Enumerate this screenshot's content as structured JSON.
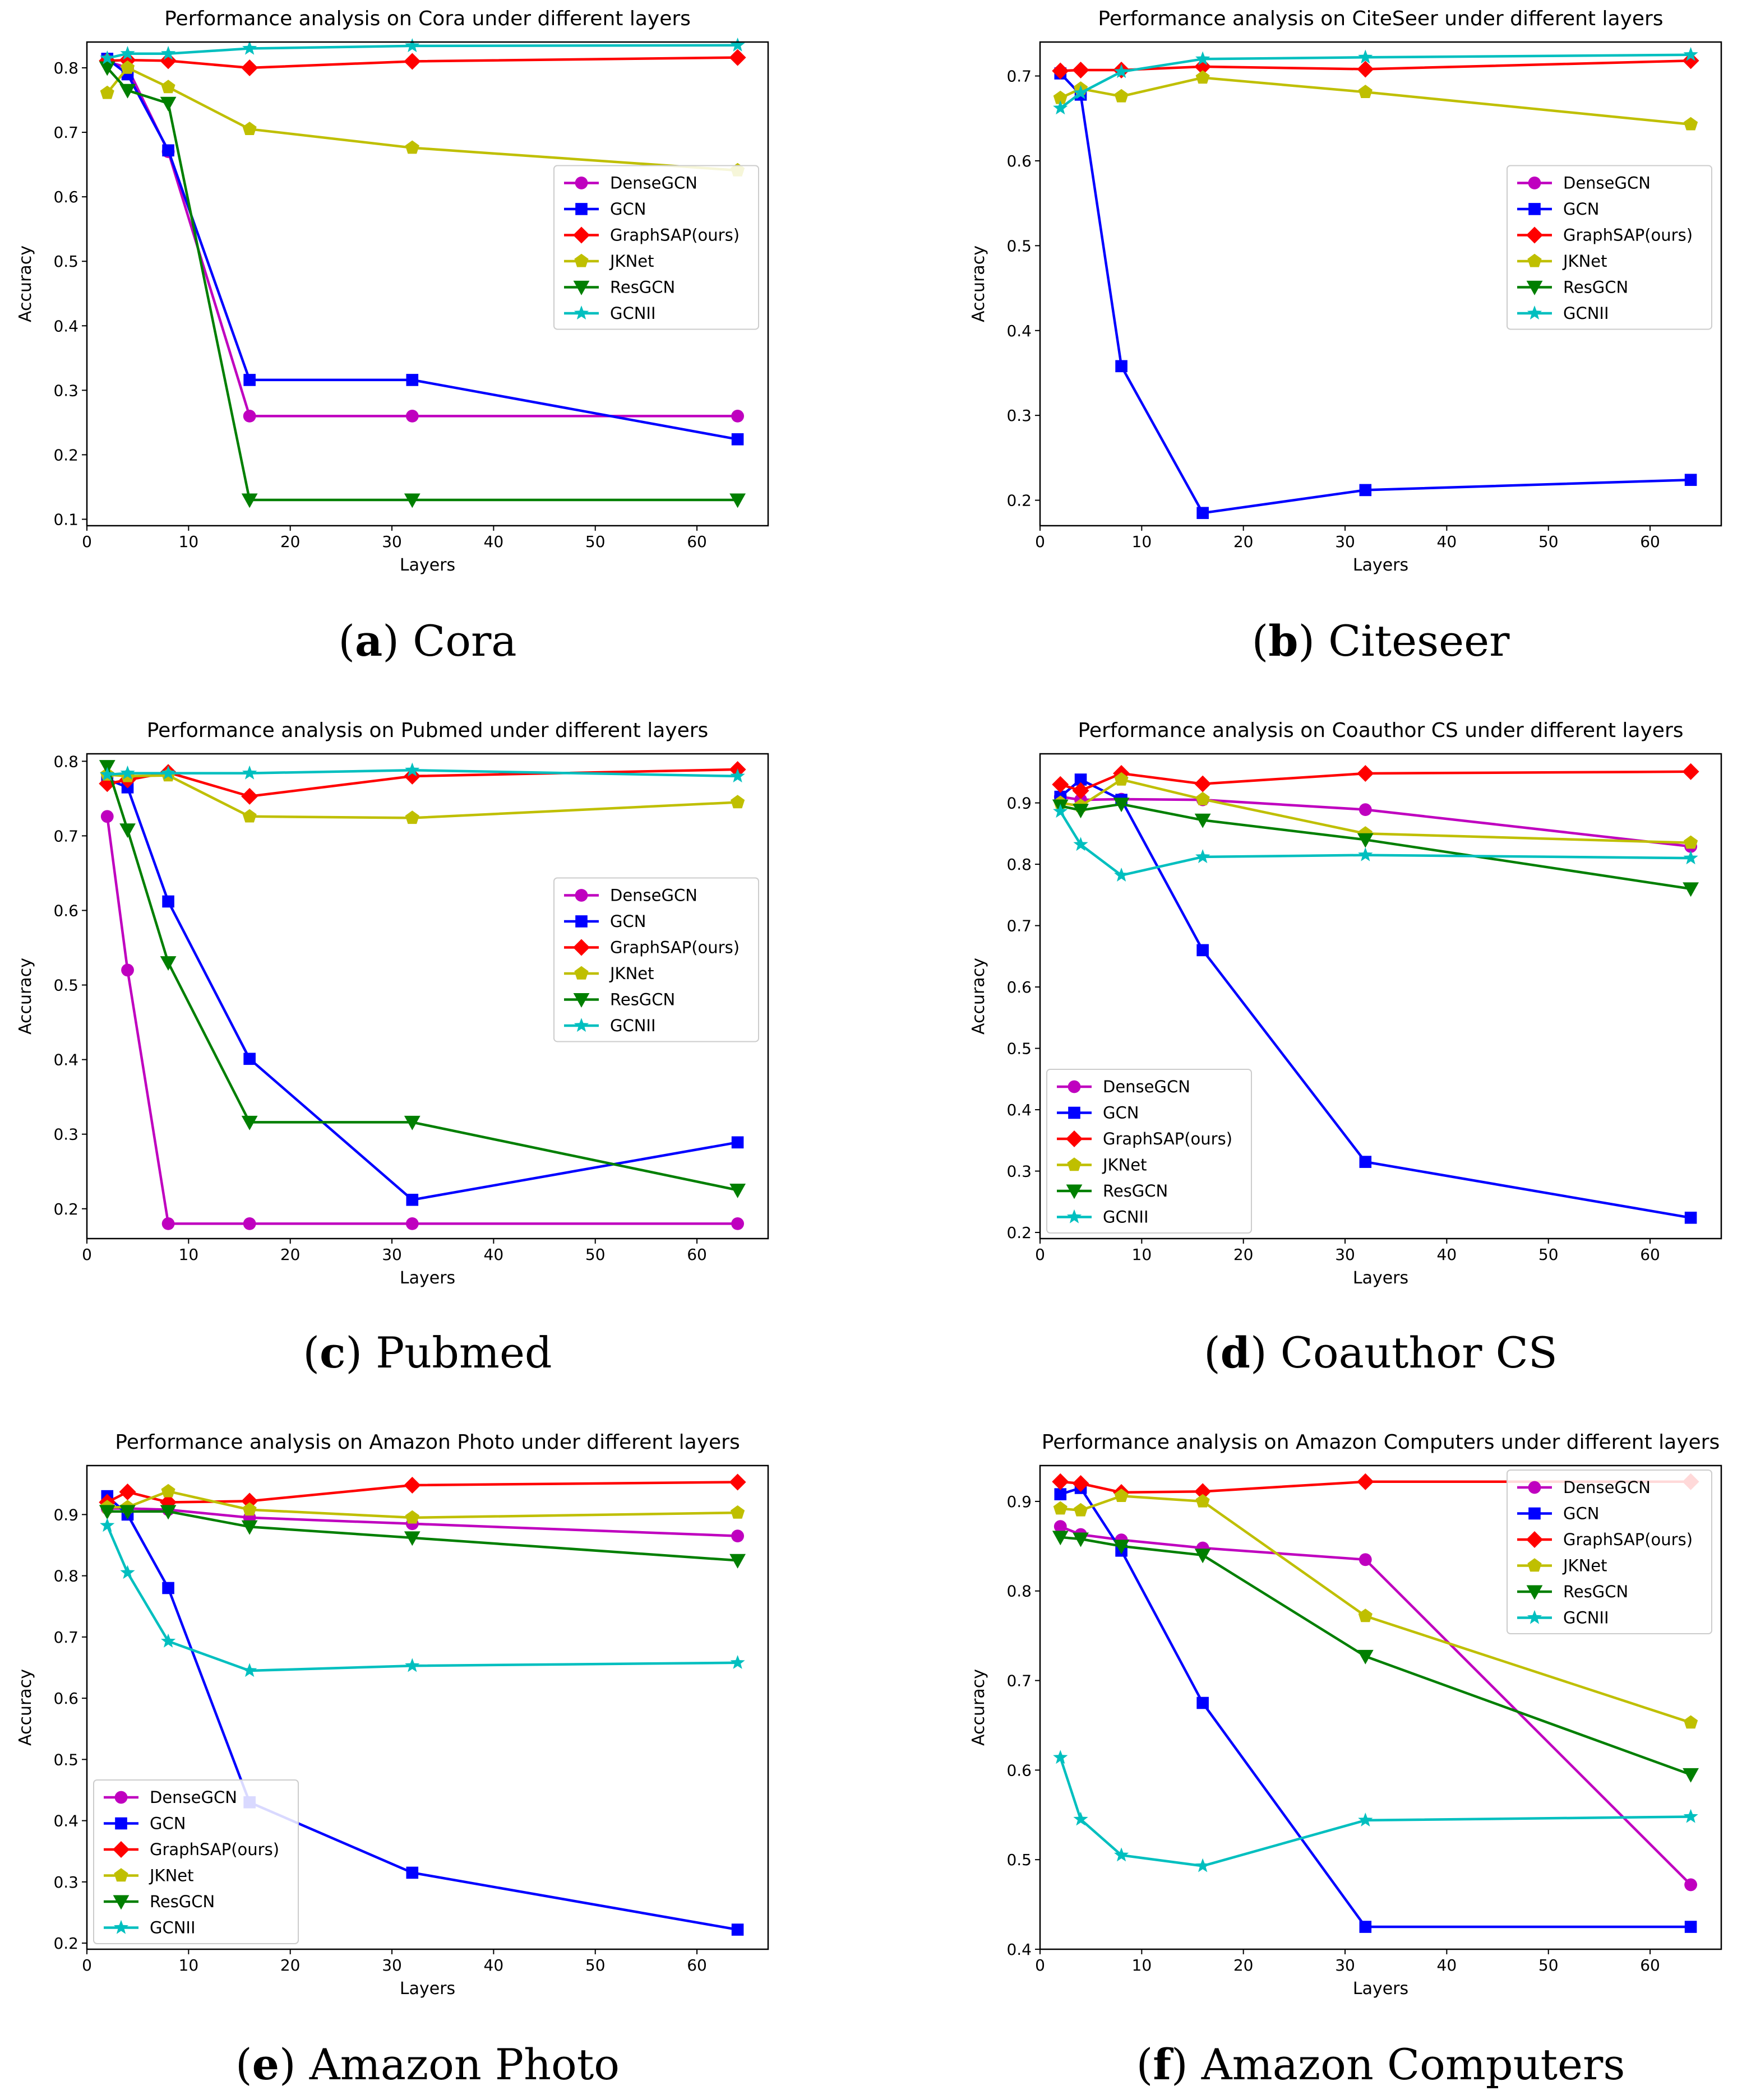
{
  "figure": {
    "series_colors": {
      "DenseGCN": "#bf00bf",
      "GCN": "#0000ff",
      "GraphSAP(ours)": "#ff0000",
      "JKNet": "#bfbf00",
      "ResGCN": "#007f00",
      "GCNII": "#00bfbf"
    }
  },
  "chart_data": [
    {
      "type": "line",
      "caption_letter": "a",
      "caption_text": "Cora",
      "title": "Performance analysis on Cora under different layers",
      "xlabel": "Layers",
      "ylabel": "Accuracy",
      "xlim": [
        0,
        67
      ],
      "ylim": [
        0.09,
        0.84
      ],
      "xticks": [
        0,
        10,
        20,
        30,
        40,
        50,
        60
      ],
      "yticks": [
        0.1,
        0.2,
        0.3,
        0.4,
        0.5,
        0.6,
        0.7,
        0.8
      ],
      "legend_position": "center-right",
      "x": [
        2,
        4,
        8,
        16,
        32,
        64
      ],
      "series": [
        {
          "name": "DenseGCN",
          "color": "#bf00bf",
          "marker": "circle",
          "values": [
            0.81,
            0.8,
            0.67,
            0.26,
            0.26,
            0.26
          ]
        },
        {
          "name": "GCN",
          "color": "#0000ff",
          "marker": "square",
          "values": [
            0.814,
            0.79,
            0.672,
            0.316,
            0.316,
            0.224
          ]
        },
        {
          "name": "GraphSAP(ours)",
          "color": "#ff0000",
          "marker": "diamond",
          "values": [
            0.811,
            0.812,
            0.811,
            0.8,
            0.81,
            0.816
          ]
        },
        {
          "name": "JKNet",
          "color": "#bfbf00",
          "marker": "pentagon",
          "values": [
            0.761,
            0.8,
            0.77,
            0.705,
            0.676,
            0.641
          ]
        },
        {
          "name": "ResGCN",
          "color": "#007f00",
          "marker": "triangle-down",
          "values": [
            0.8,
            0.765,
            0.745,
            0.13,
            0.13,
            0.13
          ]
        },
        {
          "name": "GCNII",
          "color": "#00bfbf",
          "marker": "star",
          "values": [
            0.815,
            0.822,
            0.822,
            0.83,
            0.834,
            0.835
          ]
        }
      ]
    },
    {
      "type": "line",
      "caption_letter": "b",
      "caption_text": "Citeseer",
      "title": "Performance analysis on CiteSeer under different layers",
      "xlabel": "Layers",
      "ylabel": "Accuracy",
      "xlim": [
        0,
        67
      ],
      "ylim": [
        0.17,
        0.74
      ],
      "xticks": [
        0,
        10,
        20,
        30,
        40,
        50,
        60
      ],
      "yticks": [
        0.2,
        0.3,
        0.4,
        0.5,
        0.6,
        0.7
      ],
      "legend_position": "center-right",
      "x": [
        2,
        4,
        8,
        16,
        32,
        64
      ],
      "series": [
        {
          "name": "DenseGCN",
          "color": "#bf00bf",
          "marker": "circle",
          "values": [
            null,
            null,
            null,
            null,
            null,
            null
          ]
        },
        {
          "name": "GCN",
          "color": "#0000ff",
          "marker": "square",
          "values": [
            0.703,
            0.678,
            0.358,
            0.185,
            0.212,
            0.224
          ]
        },
        {
          "name": "GraphSAP(ours)",
          "color": "#ff0000",
          "marker": "diamond",
          "values": [
            0.706,
            0.707,
            0.707,
            0.711,
            0.708,
            0.718
          ]
        },
        {
          "name": "JKNet",
          "color": "#bfbf00",
          "marker": "pentagon",
          "values": [
            0.674,
            0.685,
            0.676,
            0.698,
            0.681,
            0.643
          ]
        },
        {
          "name": "ResGCN",
          "color": "#007f00",
          "marker": "triangle-down",
          "values": [
            null,
            null,
            null,
            null,
            null,
            null
          ]
        },
        {
          "name": "GCNII",
          "color": "#00bfbf",
          "marker": "star",
          "values": [
            0.662,
            0.68,
            0.705,
            0.72,
            0.722,
            0.725
          ]
        }
      ]
    },
    {
      "type": "line",
      "caption_letter": "c",
      "caption_text": "Pubmed",
      "title": "Performance analysis on Pubmed under different layers",
      "xlabel": "Layers",
      "ylabel": "Accuracy",
      "xlim": [
        0,
        67
      ],
      "ylim": [
        0.16,
        0.81
      ],
      "xticks": [
        0,
        10,
        20,
        30,
        40,
        50,
        60
      ],
      "yticks": [
        0.2,
        0.3,
        0.4,
        0.5,
        0.6,
        0.7,
        0.8
      ],
      "legend_position": "center-right",
      "x": [
        2,
        4,
        8,
        16,
        32,
        64
      ],
      "series": [
        {
          "name": "DenseGCN",
          "color": "#bf00bf",
          "marker": "circle",
          "values": [
            0.726,
            0.52,
            0.18,
            0.18,
            0.18,
            0.18
          ]
        },
        {
          "name": "GCN",
          "color": "#0000ff",
          "marker": "square",
          "values": [
            0.776,
            0.765,
            0.612,
            0.401,
            0.212,
            0.289
          ]
        },
        {
          "name": "GraphSAP(ours)",
          "color": "#ff0000",
          "marker": "diamond",
          "values": [
            0.77,
            0.775,
            0.785,
            0.753,
            0.78,
            0.789
          ]
        },
        {
          "name": "JKNet",
          "color": "#bfbf00",
          "marker": "pentagon",
          "values": [
            0.782,
            0.78,
            0.781,
            0.726,
            0.724,
            0.745
          ]
        },
        {
          "name": "ResGCN",
          "color": "#007f00",
          "marker": "triangle-down",
          "values": [
            0.793,
            0.708,
            0.53,
            0.316,
            0.316,
            0.225
          ]
        },
        {
          "name": "GCNII",
          "color": "#00bfbf",
          "marker": "star",
          "values": [
            0.782,
            0.784,
            0.784,
            0.784,
            0.788,
            0.78
          ]
        }
      ]
    },
    {
      "type": "line",
      "caption_letter": "d",
      "caption_text": "Coauthor CS",
      "title": "Performance analysis on Coauthor CS under different layers",
      "xlabel": "Layers",
      "ylabel": "Accuracy",
      "xlim": [
        0,
        67
      ],
      "ylim": [
        0.19,
        0.98
      ],
      "xticks": [
        0,
        10,
        20,
        30,
        40,
        50,
        60
      ],
      "yticks": [
        0.2,
        0.3,
        0.4,
        0.5,
        0.6,
        0.7,
        0.8,
        0.9
      ],
      "legend_position": "lower-left",
      "x": [
        2,
        4,
        8,
        16,
        32,
        64
      ],
      "series": [
        {
          "name": "DenseGCN",
          "color": "#bf00bf",
          "marker": "circle",
          "values": [
            0.91,
            0.905,
            0.906,
            0.905,
            0.889,
            0.829
          ]
        },
        {
          "name": "GCN",
          "color": "#0000ff",
          "marker": "square",
          "values": [
            0.91,
            0.938,
            0.905,
            0.66,
            0.315,
            0.224
          ]
        },
        {
          "name": "GraphSAP(ours)",
          "color": "#ff0000",
          "marker": "diamond",
          "values": [
            0.93,
            0.92,
            0.948,
            0.931,
            0.948,
            0.951
          ]
        },
        {
          "name": "JKNet",
          "color": "#bfbf00",
          "marker": "pentagon",
          "values": [
            0.9,
            0.895,
            0.938,
            0.906,
            0.85,
            0.835
          ]
        },
        {
          "name": "ResGCN",
          "color": "#007f00",
          "marker": "triangle-down",
          "values": [
            0.895,
            0.888,
            0.898,
            0.872,
            0.84,
            0.76
          ]
        },
        {
          "name": "GCNII",
          "color": "#00bfbf",
          "marker": "star",
          "values": [
            0.886,
            0.832,
            0.782,
            0.812,
            0.815,
            0.81
          ]
        }
      ]
    },
    {
      "type": "line",
      "caption_letter": "e",
      "caption_text": "Amazon Photo",
      "title": "Performance analysis on Amazon Photo under different layers",
      "xlabel": "Layers",
      "ylabel": "Accuracy",
      "xlim": [
        0,
        67
      ],
      "ylim": [
        0.19,
        0.98
      ],
      "xticks": [
        0,
        10,
        20,
        30,
        40,
        50,
        60
      ],
      "yticks": [
        0.2,
        0.3,
        0.4,
        0.5,
        0.6,
        0.7,
        0.8,
        0.9
      ],
      "legend_position": "lower-left",
      "x": [
        2,
        4,
        8,
        16,
        32,
        64
      ],
      "series": [
        {
          "name": "DenseGCN",
          "color": "#bf00bf",
          "marker": "circle",
          "values": [
            0.91,
            0.91,
            0.908,
            0.895,
            0.885,
            0.865
          ]
        },
        {
          "name": "GCN",
          "color": "#0000ff",
          "marker": "square",
          "values": [
            0.93,
            0.9,
            0.78,
            0.43,
            0.315,
            0.222
          ]
        },
        {
          "name": "GraphSAP(ours)",
          "color": "#ff0000",
          "marker": "diamond",
          "values": [
            0.92,
            0.937,
            0.92,
            0.922,
            0.948,
            0.953
          ]
        },
        {
          "name": "JKNet",
          "color": "#bfbf00",
          "marker": "pentagon",
          "values": [
            0.912,
            0.912,
            0.938,
            0.908,
            0.895,
            0.903
          ]
        },
        {
          "name": "ResGCN",
          "color": "#007f00",
          "marker": "triangle-down",
          "values": [
            0.905,
            0.905,
            0.905,
            0.88,
            0.862,
            0.825
          ]
        },
        {
          "name": "GCNII",
          "color": "#00bfbf",
          "marker": "star",
          "values": [
            0.882,
            0.805,
            0.693,
            0.645,
            0.653,
            0.658
          ]
        }
      ]
    },
    {
      "type": "line",
      "caption_letter": "f",
      "caption_text": "Amazon Computers",
      "title": "Performance analysis on Amazon Computers under different layers",
      "xlabel": "Layers",
      "ylabel": "Accuracy",
      "xlim": [
        0,
        67
      ],
      "ylim": [
        0.4,
        0.94
      ],
      "xticks": [
        0,
        10,
        20,
        30,
        40,
        50,
        60
      ],
      "yticks": [
        0.4,
        0.5,
        0.6,
        0.7,
        0.8,
        0.9
      ],
      "legend_position": "upper-right",
      "x": [
        2,
        4,
        8,
        16,
        32,
        64
      ],
      "series": [
        {
          "name": "DenseGCN",
          "color": "#bf00bf",
          "marker": "circle",
          "values": [
            0.872,
            0.863,
            0.857,
            0.848,
            0.835,
            0.472
          ]
        },
        {
          "name": "GCN",
          "color": "#0000ff",
          "marker": "square",
          "values": [
            0.908,
            0.915,
            0.845,
            0.675,
            0.425,
            0.425
          ]
        },
        {
          "name": "GraphSAP(ours)",
          "color": "#ff0000",
          "marker": "diamond",
          "values": [
            0.922,
            0.92,
            0.91,
            0.911,
            0.922,
            0.922
          ]
        },
        {
          "name": "JKNet",
          "color": "#bfbf00",
          "marker": "pentagon",
          "values": [
            0.892,
            0.89,
            0.906,
            0.9,
            0.772,
            0.653
          ]
        },
        {
          "name": "ResGCN",
          "color": "#007f00",
          "marker": "triangle-down",
          "values": [
            0.86,
            0.858,
            0.85,
            0.84,
            0.727,
            0.595
          ]
        },
        {
          "name": "GCNII",
          "color": "#00bfbf",
          "marker": "star",
          "values": [
            0.614,
            0.545,
            0.505,
            0.493,
            0.544,
            0.548
          ]
        }
      ]
    }
  ]
}
